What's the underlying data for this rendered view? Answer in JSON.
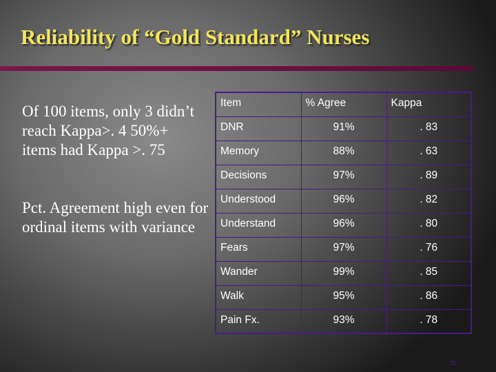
{
  "title": "Reliability of “Gold Standard” Nurses",
  "bullets": [
    "Of 100 items, only 3 didn’t reach Kappa>. 4 50%+ items had Kappa >. 75",
    "Pct. Agreement high even for ordinal items with variance"
  ],
  "table": {
    "headers": [
      "Item",
      "% Agree",
      "Kappa"
    ],
    "rows": [
      [
        "DNR",
        "91%",
        ". 83"
      ],
      [
        "Memory",
        "88%",
        ". 63"
      ],
      [
        "Decisions",
        "97%",
        ". 89"
      ],
      [
        "Understood",
        "96%",
        ". 82"
      ],
      [
        "Understand",
        "96%",
        ". 80"
      ],
      [
        "Fears",
        "97%",
        ". 76"
      ],
      [
        "Wander",
        "99%",
        ". 85"
      ],
      [
        "Walk",
        "95%",
        ". 86"
      ],
      [
        "Pain Fx.",
        "93%",
        ". 78"
      ]
    ]
  },
  "page_number": "26",
  "colors": {
    "title": "#f2e55a",
    "bar": "#6a1040",
    "table_border": "#4a1a8a"
  }
}
